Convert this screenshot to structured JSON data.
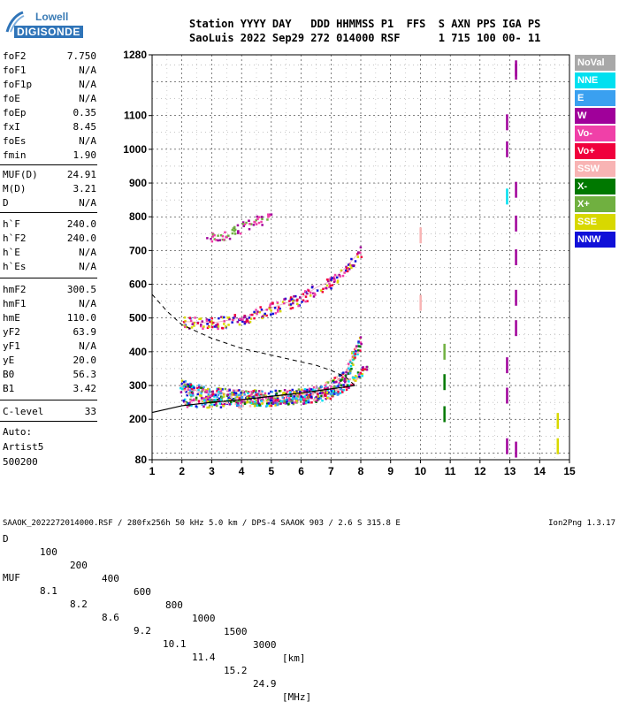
{
  "logo": {
    "line1": "Lowell",
    "line2": "DIGISONDE"
  },
  "header": {
    "line1": "Station YYYY DAY   DDD HHMMSS P1  FFS  S AXN PPS IGA PS",
    "line2": "SaoLuis 2022 Sep29 272 014000 RSF      1 715 100 00- 11"
  },
  "params": [
    {
      "label": "foF2",
      "value": "7.750"
    },
    {
      "label": "foF1",
      "value": "N/A"
    },
    {
      "label": "foF1p",
      "value": "N/A"
    },
    {
      "label": "foE",
      "value": "N/A"
    },
    {
      "label": "foEp",
      "value": "0.35"
    },
    {
      "label": "fxI",
      "value": "8.45"
    },
    {
      "label": "foEs",
      "value": "N/A"
    },
    {
      "label": "fmin",
      "value": "1.90"
    },
    {
      "label": "MUF(D)",
      "value": "24.91"
    },
    {
      "label": "M(D)",
      "value": "3.21"
    },
    {
      "label": "D",
      "value": "N/A"
    },
    {
      "label": "h`F",
      "value": "240.0"
    },
    {
      "label": "h`F2",
      "value": "240.0"
    },
    {
      "label": "h`E",
      "value": "N/A"
    },
    {
      "label": "h`Es",
      "value": "N/A"
    },
    {
      "label": "hmF2",
      "value": "300.5"
    },
    {
      "label": "hmF1",
      "value": "N/A"
    },
    {
      "label": "hmE",
      "value": "110.0"
    },
    {
      "label": "yF2",
      "value": "63.9"
    },
    {
      "label": "yF1",
      "value": "N/A"
    },
    {
      "label": "yE",
      "value": "20.0"
    },
    {
      "label": "B0",
      "value": "56.3"
    },
    {
      "label": "B1",
      "value": "3.42"
    },
    {
      "label": "C-level",
      "value": "33"
    }
  ],
  "autoscaling": {
    "line1": "Auto:",
    "line2": "Artist5",
    "line3": "500200"
  },
  "legend": [
    {
      "label": "NoVal",
      "color": "#a8a8a8"
    },
    {
      "label": "NNE",
      "color": "#00e0f0"
    },
    {
      "label": "E",
      "color": "#3aa0f0"
    },
    {
      "label": "W",
      "color": "#a0009a"
    },
    {
      "label": "Vo-",
      "color": "#f040a8"
    },
    {
      "label": "Vo+",
      "color": "#f0003c"
    },
    {
      "label": "SSW",
      "color": "#f8b4b4"
    },
    {
      "label": "X-",
      "color": "#007800"
    },
    {
      "label": "X+",
      "color": "#70b040"
    },
    {
      "label": "SSE",
      "color": "#d8d800"
    },
    {
      "label": "NNW",
      "color": "#1010d8"
    }
  ],
  "muf_table": {
    "d_label": "D",
    "d_values": [
      "100",
      "200",
      "400",
      "600",
      "800",
      "1000",
      "1500",
      "3000"
    ],
    "d_unit": "[km]",
    "muf_label": "MUF",
    "muf_values": [
      "8.1",
      "8.2",
      "8.6",
      "9.2",
      "10.1",
      "11.4",
      "15.2",
      "24.9"
    ],
    "muf_unit": "[MHz]"
  },
  "footer": {
    "left": "SAAOK_2022272014000.RSF / 280fx256h 50 kHz 5.0 km / DPS-4 SAAOK 903 / 2.6 S 315.8 E",
    "right": "Ion2Png 1.3.17"
  },
  "chart_data": {
    "type": "scatter",
    "xlim": [
      1,
      15
    ],
    "x_ticks": [
      1,
      2,
      3,
      4,
      5,
      6,
      7,
      8,
      9,
      10,
      11,
      12,
      13,
      14,
      15
    ],
    "ylim": [
      80,
      1280
    ],
    "y_ticks": [
      80,
      200,
      300,
      400,
      500,
      600,
      700,
      800,
      900,
      1000,
      1100,
      1280
    ],
    "grid": true,
    "trace_F2_o": [
      [
        1.9,
        300
      ],
      [
        2.5,
        285
      ],
      [
        3,
        278
      ],
      [
        4,
        270
      ],
      [
        5,
        268
      ],
      [
        6,
        272
      ],
      [
        6.5,
        280
      ],
      [
        7,
        300
      ],
      [
        7.5,
        340
      ],
      [
        7.75,
        390
      ],
      [
        8.0,
        440
      ]
    ],
    "trace_F2_o_weak": [
      [
        2,
        250
      ],
      [
        3,
        250
      ],
      [
        4,
        248
      ],
      [
        5,
        255
      ],
      [
        6,
        260
      ],
      [
        7,
        275
      ],
      [
        7.5,
        300
      ],
      [
        8.2,
        360
      ]
    ],
    "trace_multi_hop": [
      [
        2,
        490
      ],
      [
        3,
        485
      ],
      [
        4,
        500
      ],
      [
        5,
        530
      ],
      [
        6,
        560
      ],
      [
        6.5,
        590
      ],
      [
        7,
        610
      ],
      [
        7.5,
        650
      ],
      [
        8,
        700
      ]
    ],
    "trace_upper": [
      [
        2.8,
        740
      ],
      [
        3.5,
        750
      ],
      [
        4,
        770
      ],
      [
        4.5,
        790
      ],
      [
        5,
        800
      ]
    ],
    "profile_solid": [
      [
        1,
        220
      ],
      [
        2,
        240
      ],
      [
        3,
        250
      ],
      [
        4,
        258
      ],
      [
        5,
        268
      ],
      [
        6,
        278
      ],
      [
        7,
        290
      ],
      [
        7.5,
        296
      ],
      [
        7.8,
        300
      ]
    ],
    "profile_dashed": [
      [
        1,
        570
      ],
      [
        1.5,
        520
      ],
      [
        2,
        480
      ],
      [
        3,
        440
      ],
      [
        4,
        410
      ],
      [
        5,
        390
      ],
      [
        6,
        370
      ],
      [
        6.5,
        360
      ],
      [
        7,
        345
      ],
      [
        7.5,
        325
      ],
      [
        7.8,
        300
      ]
    ],
    "isolated_marks": [
      {
        "x": 13.2,
        "y": 1240,
        "series": "W"
      },
      {
        "x": 13.2,
        "y": 1230,
        "series": "W"
      },
      {
        "x": 12.9,
        "y": 1080,
        "series": "W"
      },
      {
        "x": 12.9,
        "y": 1000,
        "series": "W"
      },
      {
        "x": 13.2,
        "y": 880,
        "series": "W"
      },
      {
        "x": 13.2,
        "y": 780,
        "series": "W"
      },
      {
        "x": 13.2,
        "y": 680,
        "series": "W"
      },
      {
        "x": 13.2,
        "y": 560,
        "series": "W"
      },
      {
        "x": 13.2,
        "y": 470,
        "series": "W"
      },
      {
        "x": 12.9,
        "y": 360,
        "series": "W"
      },
      {
        "x": 12.9,
        "y": 270,
        "series": "W"
      },
      {
        "x": 12.9,
        "y": 120,
        "series": "W"
      },
      {
        "x": 13.2,
        "y": 110,
        "series": "W"
      },
      {
        "x": 10.0,
        "y": 745,
        "series": "SSW"
      },
      {
        "x": 10.0,
        "y": 545,
        "series": "SSW"
      },
      {
        "x": 10.8,
        "y": 310,
        "series": "X-"
      },
      {
        "x": 10.8,
        "y": 215,
        "series": "X-"
      },
      {
        "x": 10.8,
        "y": 400,
        "series": "X+"
      },
      {
        "x": 14.6,
        "y": 195,
        "series": "SSE"
      },
      {
        "x": 14.6,
        "y": 120,
        "series": "SSE"
      },
      {
        "x": 12.9,
        "y": 860,
        "series": "NNE"
      }
    ]
  }
}
